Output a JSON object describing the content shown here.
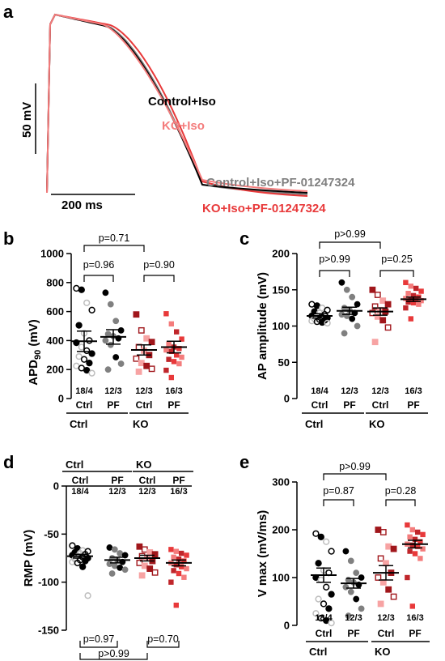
{
  "colors": {
    "control": "#000000",
    "control_pf": "#808080",
    "ko": "#f47c7c",
    "ko_pf": "#e8393a",
    "ko_dark": "#a0161b",
    "ctrl_light": "#bdbdbd",
    "ko_light": "#f7a3a3"
  },
  "panel_a": {
    "label": "a",
    "scale_v": "50 mV",
    "scale_t": "200 ms",
    "legend": [
      "Control+Iso",
      "KO+Iso",
      "Control+Iso+PF-01247324",
      "KO+Iso+PF-01247324"
    ]
  },
  "panel_b": {
    "label": "b",
    "n_labels": [
      "18/4",
      "12/3",
      "12/3",
      "16/3"
    ],
    "pvalues": [
      "p=0.71",
      "p=0.96",
      "p=0.90"
    ]
  },
  "panel_c": {
    "label": "c",
    "n_labels": [
      "18/4",
      "12/3",
      "12/3",
      "16/3"
    ],
    "pvalues": [
      "p>0.99",
      "p>0.99",
      "p=0.25"
    ]
  },
  "panel_d": {
    "label": "d",
    "n_labels": [
      "18/4",
      "12/3",
      "12/3",
      "16/3"
    ],
    "pvalues": [
      "p=0.97",
      "p=0.70",
      "p>0.99"
    ]
  },
  "panel_e": {
    "label": "e",
    "n_labels": [
      "18/4",
      "12/3",
      "12/3",
      "16/3"
    ],
    "pvalues": [
      "p>0.99",
      "p=0.87",
      "p=0.28"
    ]
  },
  "groups": {
    "top": [
      "Ctrl",
      "KO"
    ],
    "sub": [
      "Ctrl",
      "PF",
      "Ctrl",
      "PF"
    ]
  },
  "chart_data": [
    {
      "panel": "a",
      "type": "line",
      "series": [
        {
          "name": "Control+Iso",
          "color": "#000000"
        },
        {
          "name": "KO+Iso",
          "color": "#f47c7c"
        },
        {
          "name": "Control+Iso+PF-01247324",
          "color": "#808080"
        },
        {
          "name": "KO+Iso+PF-01247324",
          "color": "#e8393a"
        }
      ]
    },
    {
      "panel": "b",
      "type": "scatter",
      "ylabel": "APD90 (mV)",
      "ylim": [
        0,
        1000
      ],
      "yticks": [
        0,
        200,
        400,
        600,
        800,
        1000
      ],
      "categories": [
        "Ctrl",
        "PF",
        "Ctrl",
        "PF"
      ],
      "means": [
        395,
        425,
        335,
        355
      ],
      "sems": [
        70,
        50,
        35,
        40
      ],
      "points": [
        [
          760,
          750,
          660,
          610,
          505,
          450,
          400,
          385,
          355,
          330,
          310,
          290,
          270,
          245,
          225,
          210,
          195,
          175
        ],
        [
          730,
          650,
          535,
          470,
          445,
          430,
          415,
          400,
          370,
          285,
          240,
          200
        ],
        [
          580,
          470,
          415,
          390,
          355,
          330,
          300,
          275,
          245,
          225,
          205,
          185
        ],
        [
          585,
          515,
          460,
          410,
          375,
          355,
          345,
          335,
          325,
          300,
          285,
          270,
          255,
          240,
          195,
          145
        ]
      ]
    },
    {
      "panel": "c",
      "type": "scatter",
      "ylabel": "AP amplitude (mV)",
      "ylim": [
        0,
        200
      ],
      "yticks": [
        0,
        50,
        100,
        150,
        200
      ],
      "categories": [
        "Ctrl",
        "PF",
        "Ctrl",
        "PF"
      ],
      "means": [
        114,
        121,
        120,
        137
      ],
      "sems": [
        3,
        5,
        5,
        3
      ],
      "points": [
        [
          130,
          128,
          125,
          122,
          120,
          118,
          116,
          114,
          113,
          112,
          111,
          110,
          109,
          108,
          107,
          106,
          105,
          104
        ],
        [
          160,
          150,
          140,
          130,
          125,
          122,
          118,
          116,
          114,
          110,
          100,
          90
        ],
        [
          150,
          143,
          135,
          130,
          127,
          122,
          120,
          118,
          113,
          108,
          98,
          78
        ],
        [
          160,
          155,
          152,
          148,
          145,
          142,
          140,
          138,
          137,
          136,
          135,
          133,
          132,
          130,
          125,
          110
        ]
      ]
    },
    {
      "panel": "d",
      "type": "scatter",
      "ylabel": "RMP (mV)",
      "ylim": [
        -150,
        0
      ],
      "yticks": [
        0,
        -50,
        -100,
        -150
      ],
      "categories": [
        "Ctrl",
        "PF",
        "Ctrl",
        "PF"
      ],
      "means": [
        -73,
        -77,
        -75,
        -80
      ],
      "sems": [
        2,
        3,
        3,
        3
      ],
      "points": [
        [
          -62,
          -65,
          -67,
          -68,
          -69,
          -70,
          -71,
          -72,
          -73,
          -74,
          -75,
          -76,
          -77,
          -78,
          -79,
          -80,
          -84,
          -114
        ],
        [
          -64,
          -66,
          -70,
          -72,
          -75,
          -77,
          -79,
          -81,
          -83,
          -85,
          -87,
          -91
        ],
        [
          -63,
          -66,
          -69,
          -71,
          -73,
          -75,
          -78,
          -80,
          -83,
          -86,
          -90,
          -93
        ],
        [
          -66,
          -68,
          -70,
          -72,
          -74,
          -76,
          -78,
          -80,
          -82,
          -84,
          -86,
          -88,
          -91,
          -95,
          -100,
          -124
        ]
      ]
    },
    {
      "panel": "e",
      "type": "scatter",
      "ylabel": "V max (mV/ms)",
      "ylim": [
        0,
        300
      ],
      "yticks": [
        0,
        100,
        200,
        300
      ],
      "categories": [
        "Ctrl",
        "PF",
        "Ctrl",
        "PF"
      ],
      "means": [
        105,
        88,
        110,
        170
      ],
      "sems": [
        15,
        10,
        15,
        8
      ],
      "points": [
        [
          192,
          185,
          175,
          155,
          130,
          115,
          110,
          100,
          95,
          80,
          65,
          55,
          45,
          35,
          25,
          15,
          10,
          5
        ],
        [
          155,
          135,
          110,
          100,
          95,
          90,
          85,
          80,
          70,
          55,
          35,
          20
        ],
        [
          200,
          195,
          165,
          160,
          140,
          130,
          110,
          100,
          90,
          75,
          60,
          45
        ],
        [
          210,
          200,
          195,
          190,
          185,
          180,
          175,
          170,
          168,
          165,
          160,
          155,
          150,
          140,
          100,
          40
        ]
      ]
    }
  ]
}
